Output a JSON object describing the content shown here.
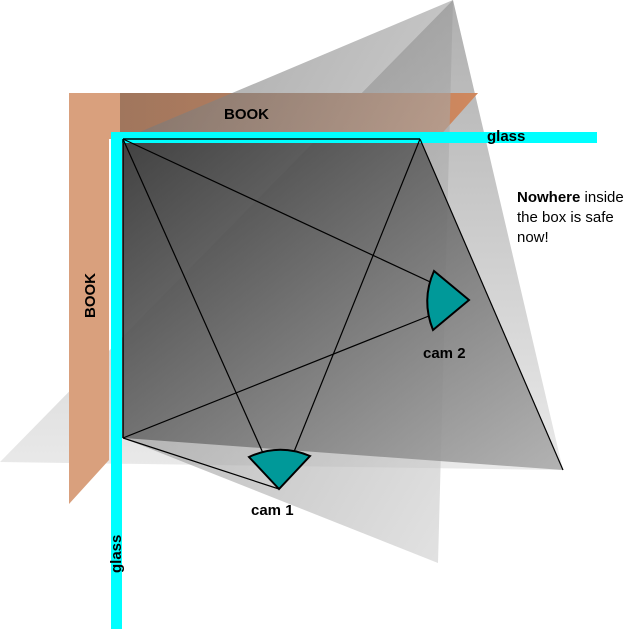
{
  "labels": {
    "book_top": "BOOK",
    "book_left": "BOOK",
    "glass_top": "glass",
    "glass_left": "glass",
    "cam1": "cam 1",
    "cam2": "cam 2"
  },
  "note": {
    "bold": "Nowhere",
    "rest": " inside the box is safe now!"
  },
  "colors": {
    "book": "#c9784a",
    "glass": "#00ffff",
    "camera": "#009999",
    "view_cone": "#888888",
    "box_dark": "#3a3a3a",
    "box_light": "#bdbdbd"
  }
}
